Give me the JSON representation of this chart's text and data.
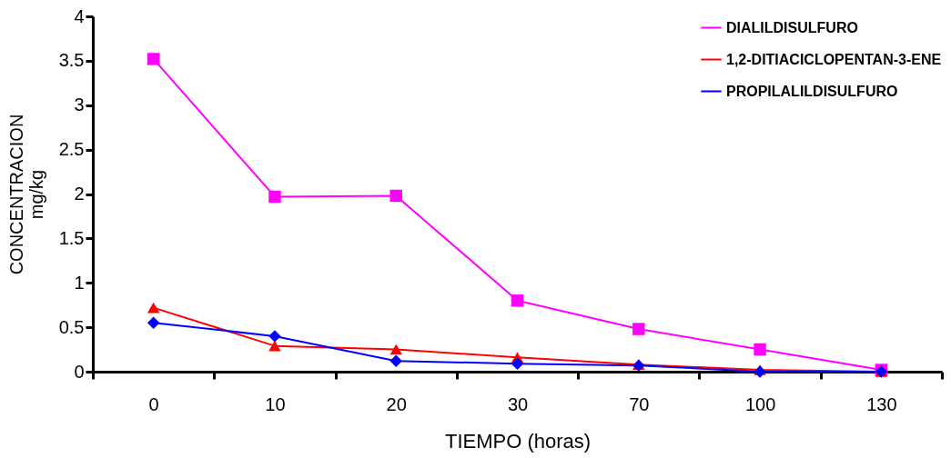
{
  "chart_data": {
    "type": "line",
    "xlabel": "TIEMPO (horas)",
    "ylabel": "CONCENTRACION\nmg/kg",
    "categories": [
      "0",
      "10",
      "20",
      "30",
      "70",
      "100",
      "130"
    ],
    "ylim": [
      0,
      4
    ],
    "yticks": [
      0,
      0.5,
      1,
      1.5,
      2,
      2.5,
      3,
      3.5,
      4
    ],
    "grid": false,
    "legend": "top right",
    "series": [
      {
        "name": "DIALILDISULFURO",
        "color": "#ff00ff",
        "marker": "square",
        "values": [
          3.52,
          1.97,
          1.98,
          0.8,
          0.48,
          0.25,
          0.02
        ]
      },
      {
        "name": "1,2-DITIACICLOPENTAN-3-ENE",
        "color": "#ff0000",
        "marker": "triangle",
        "values": [
          0.72,
          0.29,
          0.25,
          0.16,
          0.08,
          0.02,
          0.0
        ]
      },
      {
        "name": "PROPILALILDISULFURO",
        "color": "#0000ff",
        "marker": "diamond",
        "values": [
          0.55,
          0.4,
          0.12,
          0.09,
          0.07,
          0.0,
          0.0
        ]
      }
    ]
  }
}
